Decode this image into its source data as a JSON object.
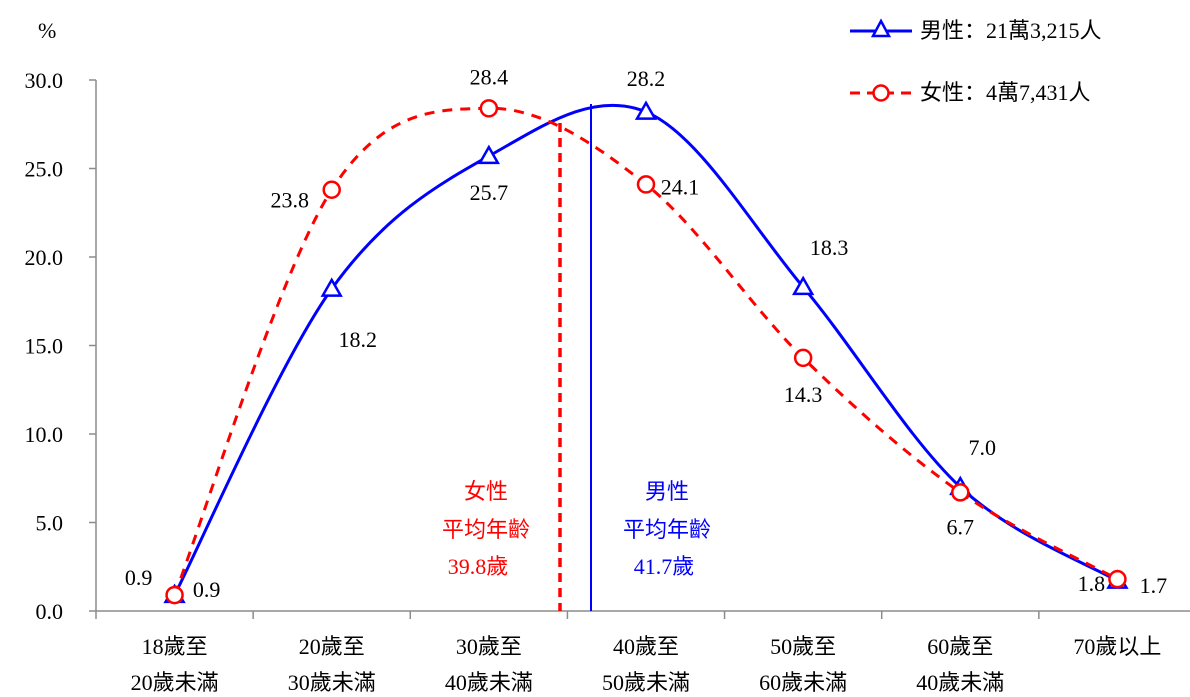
{
  "chart_data": {
    "type": "line",
    "y_unit": "%",
    "categories": [
      [
        "18歲至",
        "20歲未滿"
      ],
      [
        "20歲至",
        "30歲未滿"
      ],
      [
        "30歲至",
        "40歲未滿"
      ],
      [
        "40歲至",
        "50歲未滿"
      ],
      [
        "50歲至",
        "60歲未滿"
      ],
      [
        "60歲至",
        "40歲未滿"
      ],
      [
        "70歲以上",
        ""
      ]
    ],
    "series": [
      {
        "name": "男性：21萬3,215人",
        "color": "#0000ff",
        "line_style": "solid",
        "marker": "triangle",
        "values": [
          0.9,
          18.2,
          25.7,
          28.2,
          18.3,
          7.0,
          1.7
        ],
        "value_labels": [
          "0.9",
          "18.2",
          "25.7",
          "28.2",
          "18.3",
          "7.0",
          "1.7"
        ]
      },
      {
        "name": "女性：4萬7,431人",
        "color": "#ff0000",
        "line_style": "dashed",
        "marker": "circle",
        "values": [
          0.9,
          23.8,
          28.4,
          24.1,
          14.3,
          6.7,
          1.8
        ],
        "value_labels": [
          "0.9",
          "23.8",
          "28.4",
          "24.1",
          "14.3",
          "6.7",
          "1.8"
        ]
      }
    ],
    "ylim": [
      0,
      30
    ],
    "yticks": [
      "0.0",
      "5.0",
      "10.0",
      "15.0",
      "20.0",
      "25.0",
      "30.0"
    ],
    "grid": false,
    "legend_position": "top-right",
    "annotations": [
      {
        "label": [
          "女性",
          "平均年齡",
          "39.8歲"
        ],
        "color": "#ff0000",
        "line_style": "dashed"
      },
      {
        "label": [
          "男性",
          "平均年齡",
          "41.7歲"
        ],
        "color": "#0000ff",
        "line_style": "solid"
      }
    ]
  }
}
